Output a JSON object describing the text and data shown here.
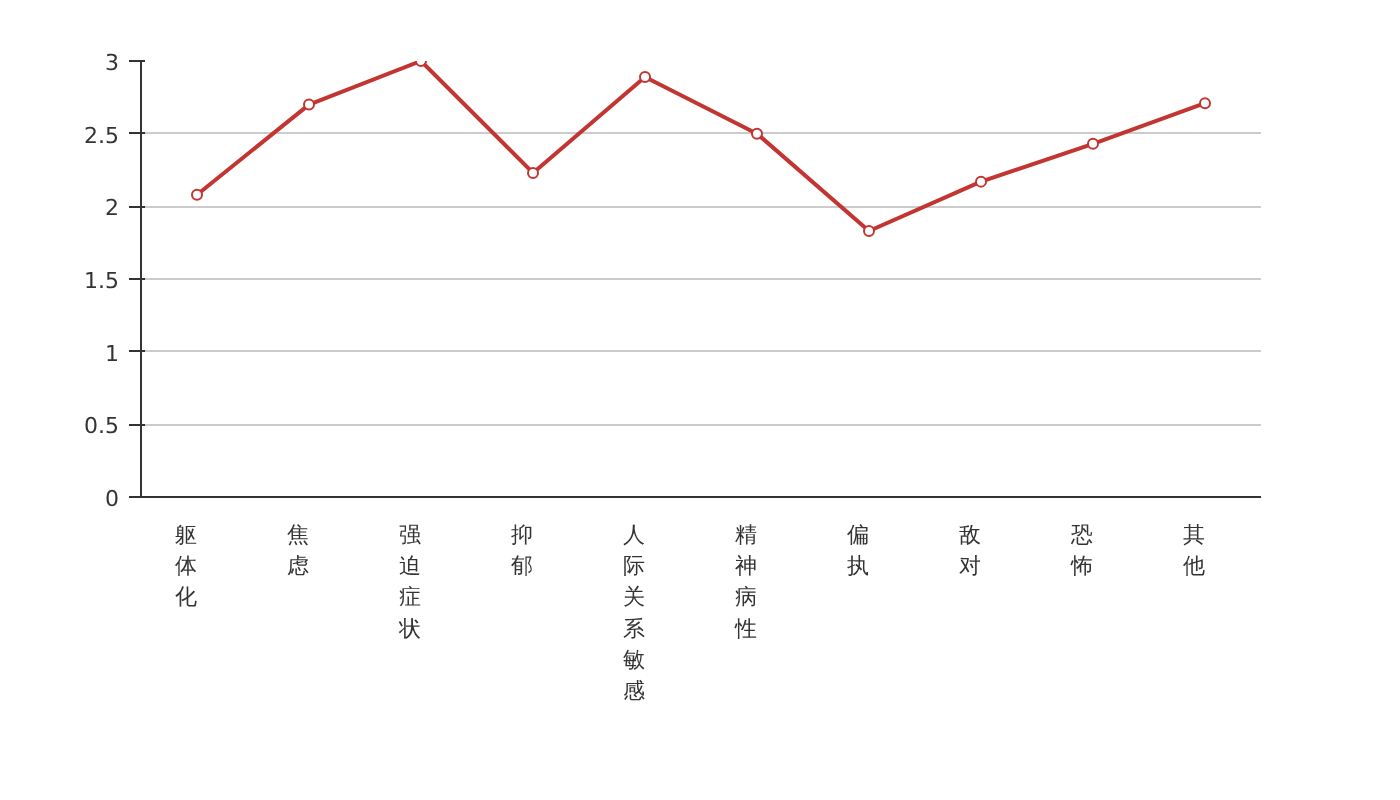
{
  "chart_data": {
    "type": "line",
    "categories": [
      "躯体化",
      "焦虑",
      "强迫症状",
      "抑郁",
      "人际关系敏感",
      "精神病性",
      "偏执",
      "敌对",
      "恐怖",
      "其他"
    ],
    "series": [
      {
        "color": "#c23531",
        "values": [
          2.08,
          2.7,
          3.0,
          2.23,
          2.89,
          2.5,
          1.83,
          2.17,
          2.43,
          2.71
        ]
      }
    ],
    "ylim": [
      0,
      3
    ],
    "yticks": [
      0,
      0.5,
      1,
      1.5,
      2,
      2.5,
      3
    ],
    "grid": "y",
    "marker": "circle",
    "line_style": "solid"
  }
}
